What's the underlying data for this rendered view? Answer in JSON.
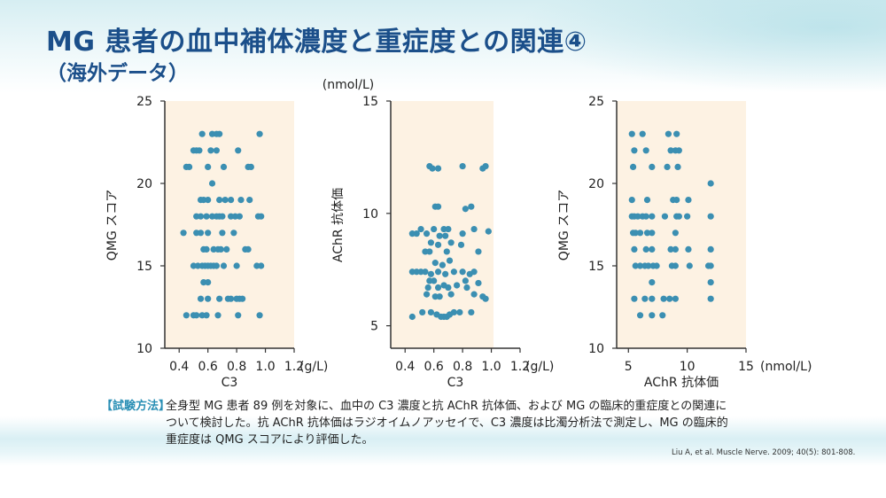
{
  "title": "MG 患者の血中補体濃度と重症度との関連④",
  "subtitle": "（海外データ）",
  "method": {
    "tag": "【試験方法】",
    "lines": [
      "全身型 MG 患者 89 例を対象に、血中の C3 濃度と抗 AChR 抗体価、および MG の臨床的重症度との関連に",
      "ついて検討した。抗 AChR 抗体価はラジオイムノアッセイで、C3 濃度は比濁分析法で測定し、MG の臨床的",
      "重症度は QMG スコアにより評価した。"
    ]
  },
  "citation": "Liu A, et al. Muscle Nerve. 2009; 40(5): 801-808.",
  "colors": {
    "point": "#3b8fb2",
    "panel": "#fdf2e3",
    "title": "#1b4f8a",
    "axis": "#333333"
  },
  "chart_data": [
    {
      "type": "scatter",
      "title": "",
      "xlabel": "C3",
      "xunit": "(g/L)",
      "ylabel": "QMG スコア",
      "xlim": [
        0.3,
        1.2
      ],
      "ylim": [
        10,
        25
      ],
      "xticks": [
        "0.4",
        "0.6",
        "0.8",
        "1.0",
        "1.2"
      ],
      "xtick_values": [
        0.4,
        0.6,
        0.8,
        1.0,
        1.2
      ],
      "yticks": [
        "10",
        "15",
        "20",
        "25"
      ],
      "ytick_values": [
        10,
        15,
        20,
        25
      ],
      "points": [
        [
          0.56,
          23
        ],
        [
          0.63,
          23
        ],
        [
          0.66,
          23
        ],
        [
          0.68,
          23
        ],
        [
          0.96,
          23
        ],
        [
          0.5,
          22
        ],
        [
          0.52,
          22
        ],
        [
          0.54,
          22
        ],
        [
          0.62,
          22
        ],
        [
          0.66,
          22
        ],
        [
          0.81,
          22
        ],
        [
          0.45,
          21
        ],
        [
          0.47,
          21
        ],
        [
          0.6,
          21
        ],
        [
          0.71,
          21
        ],
        [
          0.88,
          21
        ],
        [
          0.9,
          21
        ],
        [
          0.63,
          20
        ],
        [
          0.55,
          19
        ],
        [
          0.57,
          19
        ],
        [
          0.6,
          19
        ],
        [
          0.68,
          19
        ],
        [
          0.72,
          19
        ],
        [
          0.76,
          19
        ],
        [
          0.83,
          19
        ],
        [
          0.89,
          19
        ],
        [
          0.52,
          18
        ],
        [
          0.55,
          18
        ],
        [
          0.59,
          18
        ],
        [
          0.63,
          18
        ],
        [
          0.66,
          18
        ],
        [
          0.68,
          18
        ],
        [
          0.7,
          18
        ],
        [
          0.76,
          18
        ],
        [
          0.79,
          18
        ],
        [
          0.82,
          18
        ],
        [
          0.95,
          18
        ],
        [
          0.97,
          18
        ],
        [
          0.43,
          17
        ],
        [
          0.52,
          17
        ],
        [
          0.55,
          17
        ],
        [
          0.6,
          17
        ],
        [
          0.7,
          17
        ],
        [
          0.78,
          17
        ],
        [
          0.57,
          16
        ],
        [
          0.59,
          16
        ],
        [
          0.64,
          16
        ],
        [
          0.67,
          16
        ],
        [
          0.69,
          16
        ],
        [
          0.73,
          16
        ],
        [
          0.86,
          16
        ],
        [
          0.88,
          16
        ],
        [
          0.5,
          15
        ],
        [
          0.53,
          15
        ],
        [
          0.56,
          15
        ],
        [
          0.58,
          15
        ],
        [
          0.6,
          15
        ],
        [
          0.62,
          15
        ],
        [
          0.64,
          15
        ],
        [
          0.66,
          15
        ],
        [
          0.71,
          15
        ],
        [
          0.8,
          15
        ],
        [
          0.94,
          15
        ],
        [
          0.97,
          15
        ],
        [
          0.57,
          14
        ],
        [
          0.6,
          14
        ],
        [
          0.55,
          13
        ],
        [
          0.6,
          13
        ],
        [
          0.68,
          13
        ],
        [
          0.74,
          13
        ],
        [
          0.76,
          13
        ],
        [
          0.8,
          13
        ],
        [
          0.82,
          13
        ],
        [
          0.84,
          13
        ],
        [
          0.45,
          12
        ],
        [
          0.5,
          12
        ],
        [
          0.52,
          12
        ],
        [
          0.56,
          12
        ],
        [
          0.59,
          12
        ],
        [
          0.67,
          12
        ],
        [
          0.81,
          12
        ],
        [
          0.96,
          12
        ]
      ]
    },
    {
      "type": "scatter",
      "title": "",
      "xlabel": "C3",
      "xunit": "(g/L)",
      "ylabel": "AChR 抗体価",
      "yunit": "(nmol/L)",
      "xlim": [
        0.3,
        1.2
      ],
      "ylim": [
        4,
        15
      ],
      "xticks": [
        "0.4",
        "0.6",
        "0.8",
        "1.0",
        "1.2"
      ],
      "xtick_values": [
        0.4,
        0.6,
        0.8,
        1.0,
        1.2
      ],
      "yticks": [
        "5",
        "10",
        "15"
      ],
      "ytick_values": [
        5,
        10,
        15
      ],
      "points": [
        [
          0.57,
          12.1
        ],
        [
          0.59,
          12.0
        ],
        [
          0.63,
          12.0
        ],
        [
          0.8,
          12.1
        ],
        [
          0.94,
          12.0
        ],
        [
          0.96,
          12.1
        ],
        [
          0.61,
          10.3
        ],
        [
          0.63,
          10.3
        ],
        [
          0.82,
          10.2
        ],
        [
          0.86,
          10.3
        ],
        [
          0.51,
          9.3
        ],
        [
          0.6,
          9.3
        ],
        [
          0.67,
          9.3
        ],
        [
          0.7,
          9.3
        ],
        [
          0.88,
          9.3
        ],
        [
          0.45,
          9.1
        ],
        [
          0.48,
          9.1
        ],
        [
          0.55,
          9.1
        ],
        [
          0.64,
          9.0
        ],
        [
          0.68,
          9.0
        ],
        [
          0.8,
          9.1
        ],
        [
          0.98,
          9.2
        ],
        [
          0.58,
          8.7
        ],
        [
          0.63,
          8.6
        ],
        [
          0.72,
          8.7
        ],
        [
          0.79,
          8.6
        ],
        [
          0.54,
          8.3
        ],
        [
          0.57,
          8.3
        ],
        [
          0.69,
          8.3
        ],
        [
          0.91,
          8.3
        ],
        [
          0.61,
          7.8
        ],
        [
          0.71,
          7.9
        ],
        [
          0.66,
          7.7
        ],
        [
          0.45,
          7.4
        ],
        [
          0.48,
          7.4
        ],
        [
          0.51,
          7.4
        ],
        [
          0.54,
          7.4
        ],
        [
          0.58,
          7.3
        ],
        [
          0.63,
          7.4
        ],
        [
          0.68,
          7.3
        ],
        [
          0.74,
          7.4
        ],
        [
          0.8,
          7.4
        ],
        [
          0.85,
          7.3
        ],
        [
          0.88,
          7.4
        ],
        [
          0.57,
          7.0
        ],
        [
          0.6,
          7.0
        ],
        [
          0.82,
          7.0
        ],
        [
          0.91,
          6.9
        ],
        [
          0.56,
          6.7
        ],
        [
          0.63,
          6.7
        ],
        [
          0.67,
          6.8
        ],
        [
          0.7,
          6.7
        ],
        [
          0.76,
          6.8
        ],
        [
          0.83,
          6.7
        ],
        [
          0.55,
          6.4
        ],
        [
          0.61,
          6.3
        ],
        [
          0.64,
          6.3
        ],
        [
          0.72,
          6.4
        ],
        [
          0.88,
          6.4
        ],
        [
          0.94,
          6.3
        ],
        [
          0.96,
          6.2
        ],
        [
          0.52,
          5.6
        ],
        [
          0.58,
          5.6
        ],
        [
          0.62,
          5.5
        ],
        [
          0.65,
          5.4
        ],
        [
          0.67,
          5.4
        ],
        [
          0.69,
          5.4
        ],
        [
          0.71,
          5.5
        ],
        [
          0.74,
          5.6
        ],
        [
          0.78,
          5.6
        ],
        [
          0.86,
          5.6
        ],
        [
          0.45,
          5.4
        ]
      ]
    },
    {
      "type": "scatter",
      "title": "",
      "xlabel": "AChR 抗体価",
      "xunit": "(nmol/L)",
      "ylabel": "QMG スコア",
      "xlim": [
        4,
        15
      ],
      "ylim": [
        10,
        25
      ],
      "xticks": [
        "5",
        "10",
        "15"
      ],
      "xtick_values": [
        5,
        10,
        15
      ],
      "yticks": [
        "10",
        "15",
        "20",
        "25"
      ],
      "ytick_values": [
        10,
        15,
        20,
        25
      ],
      "points": [
        [
          5.3,
          23
        ],
        [
          6.2,
          23
        ],
        [
          8.4,
          23
        ],
        [
          9.1,
          23
        ],
        [
          5.5,
          22
        ],
        [
          6.5,
          22
        ],
        [
          8.6,
          22
        ],
        [
          9.0,
          22
        ],
        [
          9.3,
          22
        ],
        [
          5.4,
          21
        ],
        [
          7.0,
          21
        ],
        [
          8.3,
          21
        ],
        [
          9.2,
          21
        ],
        [
          12.0,
          20
        ],
        [
          5.3,
          19
        ],
        [
          6.6,
          19
        ],
        [
          8.8,
          19
        ],
        [
          9.1,
          19
        ],
        [
          10.1,
          19
        ],
        [
          5.3,
          18
        ],
        [
          5.5,
          18
        ],
        [
          5.8,
          18
        ],
        [
          6.2,
          18
        ],
        [
          6.5,
          18
        ],
        [
          7.0,
          18
        ],
        [
          8.1,
          18
        ],
        [
          9.1,
          18
        ],
        [
          9.3,
          18
        ],
        [
          10.0,
          18
        ],
        [
          12.0,
          18
        ],
        [
          5.4,
          17
        ],
        [
          5.6,
          17
        ],
        [
          6.0,
          17
        ],
        [
          6.6,
          17
        ],
        [
          7.0,
          17
        ],
        [
          9.0,
          17
        ],
        [
          5.5,
          16
        ],
        [
          6.5,
          16
        ],
        [
          7.0,
          16
        ],
        [
          8.6,
          16
        ],
        [
          9.0,
          16
        ],
        [
          10.1,
          16
        ],
        [
          12.0,
          16
        ],
        [
          5.6,
          15
        ],
        [
          6.0,
          15
        ],
        [
          6.4,
          15
        ],
        [
          6.7,
          15
        ],
        [
          7.1,
          15
        ],
        [
          7.4,
          15
        ],
        [
          8.7,
          15
        ],
        [
          9.0,
          15
        ],
        [
          10.2,
          15
        ],
        [
          11.8,
          15
        ],
        [
          12.0,
          15
        ],
        [
          7.0,
          14
        ],
        [
          12.0,
          14
        ],
        [
          5.5,
          13
        ],
        [
          6.4,
          13
        ],
        [
          7.0,
          13
        ],
        [
          8.0,
          13
        ],
        [
          8.5,
          13
        ],
        [
          9.0,
          13
        ],
        [
          12.0,
          13
        ],
        [
          6.0,
          12
        ],
        [
          7.0,
          12
        ],
        [
          7.9,
          12
        ]
      ]
    }
  ]
}
